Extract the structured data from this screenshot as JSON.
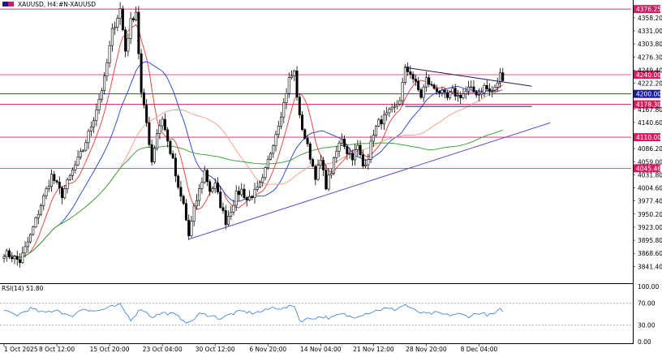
{
  "header": {
    "symbol_label": "XAUUSD, H4:",
    "instrument_label": "#N-XAUUSD"
  },
  "colors": {
    "background": "#ffffff",
    "candle": "#000000",
    "ma_fast": "#e53935",
    "ma_mid": "#1e3fcf",
    "ma_slow": "#f29a86",
    "ma_long": "#2e9e2e",
    "support_trend": "#5b4bc9",
    "resistance_trend": "#1a1a5e",
    "level_red": "#d81b60",
    "level_blue": "#1a1aa8",
    "level_dark": "#1a1a5e",
    "rsi_line": "#2f7ad8",
    "rsi_level": "#888888"
  },
  "chart_data": [
    {
      "type": "candlestick",
      "title": "XAUUSD, H4",
      "ylim": [
        3815.0,
        4385.0
      ],
      "y_ticks": [
        "4358.20",
        "4331.00",
        "4303.80",
        "4276.30",
        "4249.40",
        "4222.20",
        "4167.80",
        "4140.60",
        "4086.20",
        "4059.00",
        "4031.80",
        "4004.60",
        "3977.40",
        "3950.20",
        "3923.00",
        "3895.80",
        "3868.60",
        "3841.40"
      ],
      "x_tick_labels": [
        "1 Oct 2025",
        "8 Oct 12:00",
        "15 Oct 20:00",
        "23 Oct 04:00",
        "30 Oct 12:00",
        "6 Nov 20:00",
        "14 Nov 04:00",
        "21 Nov 12:00",
        "28 Nov 20:00",
        "8 Dec 04:00"
      ],
      "x_tick_index": [
        0,
        20,
        40,
        60,
        80,
        100,
        120,
        140,
        160,
        180
      ],
      "bar_count": 190,
      "anchors": [
        [
          0,
          3870
        ],
        [
          3,
          3862
        ],
        [
          6,
          3852
        ],
        [
          10,
          3905
        ],
        [
          14,
          3970
        ],
        [
          18,
          4030
        ],
        [
          22,
          3990
        ],
        [
          26,
          4040
        ],
        [
          30,
          4085
        ],
        [
          34,
          4150
        ],
        [
          38,
          4230
        ],
        [
          41,
          4330
        ],
        [
          44,
          4376
        ],
        [
          46,
          4290
        ],
        [
          48,
          4350
        ],
        [
          50,
          4372
        ],
        [
          52,
          4200
        ],
        [
          54,
          4140
        ],
        [
          56,
          4060
        ],
        [
          58,
          4120
        ],
        [
          60,
          4150
        ],
        [
          62,
          4100
        ],
        [
          64,
          4060
        ],
        [
          66,
          4000
        ],
        [
          68,
          3970
        ],
        [
          70,
          3905
        ],
        [
          72,
          3960
        ],
        [
          74,
          4000
        ],
        [
          76,
          4040
        ],
        [
          78,
          4000
        ],
        [
          80,
          4010
        ],
        [
          82,
          3970
        ],
        [
          84,
          3935
        ],
        [
          86,
          3960
        ],
        [
          88,
          3990
        ],
        [
          90,
          4000
        ],
        [
          92,
          3980
        ],
        [
          94,
          3990
        ],
        [
          96,
          4000
        ],
        [
          98,
          4020
        ],
        [
          100,
          4060
        ],
        [
          102,
          4100
        ],
        [
          104,
          4140
        ],
        [
          106,
          4180
        ],
        [
          108,
          4230
        ],
        [
          110,
          4245
        ],
        [
          112,
          4150
        ],
        [
          114,
          4110
        ],
        [
          116,
          4070
        ],
        [
          118,
          4030
        ],
        [
          120,
          4060
        ],
        [
          122,
          4010
        ],
        [
          124,
          4040
        ],
        [
          126,
          4080
        ],
        [
          128,
          4110
        ],
        [
          130,
          4080
        ],
        [
          132,
          4070
        ],
        [
          134,
          4090
        ],
        [
          136,
          4050
        ],
        [
          138,
          4070
        ],
        [
          140,
          4120
        ],
        [
          142,
          4140
        ],
        [
          144,
          4150
        ],
        [
          146,
          4160
        ],
        [
          148,
          4170
        ],
        [
          150,
          4190
        ],
        [
          152,
          4250
        ],
        [
          154,
          4245
        ],
        [
          156,
          4220
        ],
        [
          158,
          4195
        ],
        [
          160,
          4230
        ],
        [
          162,
          4215
        ],
        [
          164,
          4210
        ],
        [
          166,
          4200
        ],
        [
          168,
          4190
        ],
        [
          170,
          4205
        ],
        [
          172,
          4195
        ],
        [
          174,
          4200
        ],
        [
          176,
          4210
        ],
        [
          178,
          4205
        ],
        [
          180,
          4200
        ],
        [
          182,
          4215
        ],
        [
          184,
          4205
        ],
        [
          186,
          4210
        ],
        [
          188,
          4240
        ],
        [
          189,
          4235
        ]
      ],
      "moving_averages": [
        {
          "name": "MA fast",
          "color": "ma_fast",
          "period": 8
        },
        {
          "name": "MA mid",
          "color": "ma_mid",
          "period": 22
        },
        {
          "name": "MA slow",
          "color": "ma_slow",
          "period": 45
        },
        {
          "name": "MA long",
          "color": "ma_long",
          "period": 110
        }
      ],
      "horizontal_levels": [
        {
          "value": 4376.25,
          "label": "4376.25",
          "color": "level_red"
        },
        {
          "value": 4240.0,
          "label": "4240.00",
          "color": "level_red"
        },
        {
          "value": 4200.0,
          "label": "4200.00",
          "color": "level_blue"
        },
        {
          "value": 4178.3,
          "label": "4178.30",
          "color": "level_red"
        },
        {
          "value": 4110.0,
          "label": "4110.00",
          "color": "level_red"
        },
        {
          "value": 4045.46,
          "label": "4045.46",
          "color": "level_red"
        }
      ],
      "trendlines": [
        {
          "name": "rising support",
          "color": "support_trend",
          "points": [
            [
              70,
              3898
            ],
            [
              207,
              4140
            ]
          ]
        },
        {
          "name": "descending resistance",
          "color": "resistance_trend",
          "points": [
            [
              152,
              4255
            ],
            [
              200,
              4216
            ]
          ]
        },
        {
          "name": "flat support",
          "color": "resistance_trend",
          "points": [
            [
              152,
              4174
            ],
            [
              200,
              4174
            ]
          ]
        }
      ]
    },
    {
      "type": "line",
      "title": "RSI(14) 51.80",
      "ylim": [
        0,
        100
      ],
      "y_ticks": [
        "100.00",
        "70.00",
        "30.00",
        "0.00"
      ],
      "levels": [
        70,
        30
      ],
      "anchors": [
        [
          0,
          55
        ],
        [
          5,
          48
        ],
        [
          10,
          60
        ],
        [
          15,
          52
        ],
        [
          20,
          58
        ],
        [
          25,
          45
        ],
        [
          30,
          60
        ],
        [
          35,
          55
        ],
        [
          40,
          62
        ],
        [
          44,
          66
        ],
        [
          48,
          40
        ],
        [
          52,
          60
        ],
        [
          56,
          45
        ],
        [
          60,
          52
        ],
        [
          64,
          50
        ],
        [
          68,
          40
        ],
        [
          70,
          33
        ],
        [
          74,
          50
        ],
        [
          78,
          48
        ],
        [
          82,
          42
        ],
        [
          86,
          50
        ],
        [
          90,
          55
        ],
        [
          94,
          52
        ],
        [
          98,
          55
        ],
        [
          102,
          62
        ],
        [
          106,
          60
        ],
        [
          110,
          66
        ],
        [
          112,
          38
        ],
        [
          116,
          42
        ],
        [
          120,
          45
        ],
        [
          124,
          43
        ],
        [
          128,
          50
        ],
        [
          132,
          44
        ],
        [
          136,
          50
        ],
        [
          140,
          55
        ],
        [
          144,
          60
        ],
        [
          148,
          58
        ],
        [
          152,
          67
        ],
        [
          156,
          55
        ],
        [
          160,
          50
        ],
        [
          164,
          52
        ],
        [
          168,
          48
        ],
        [
          172,
          50
        ],
        [
          176,
          46
        ],
        [
          180,
          52
        ],
        [
          184,
          48
        ],
        [
          186,
          51
        ],
        [
          188,
          58
        ],
        [
          189,
          51.8
        ]
      ]
    }
  ]
}
